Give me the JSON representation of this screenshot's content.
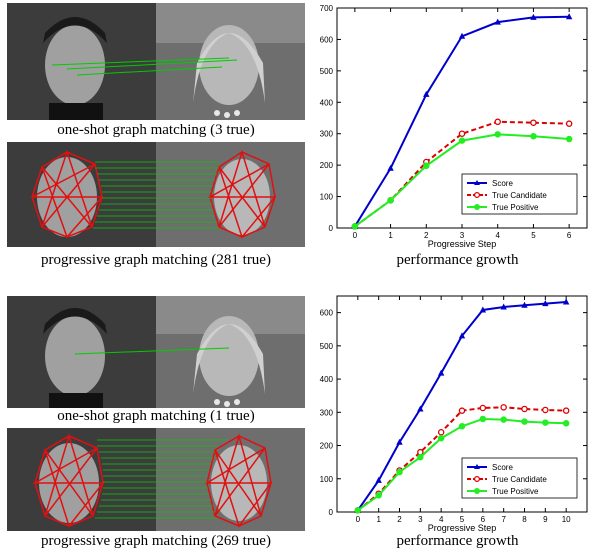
{
  "figures": [
    {
      "image_captions": [
        "one-shot graph matching (3 true)",
        "progressive graph matching (281 true)"
      ],
      "chart_caption": "performance growth"
    },
    {
      "image_captions": [
        "one-shot graph matching (1 true)",
        "progressive graph matching (269 true)"
      ],
      "chart_caption": "performance growth"
    }
  ],
  "colors": {
    "score": "#0000cc",
    "candidate": "#dd0000",
    "positive": "#22ee22",
    "graph": "#e01010",
    "match": "#00cc00"
  },
  "chart_data": [
    {
      "type": "line",
      "xlabel": "Progressive Step",
      "ylabel": "",
      "x": [
        0,
        1,
        2,
        3,
        4,
        5,
        6
      ],
      "xlim": [
        -0.5,
        6.5
      ],
      "ylim": [
        0,
        700
      ],
      "yticks": [
        0,
        100,
        200,
        300,
        400,
        500,
        600,
        700
      ],
      "legend": "bottom-right",
      "series": [
        {
          "name": "Score",
          "values": [
            5,
            190,
            425,
            610,
            655,
            670,
            672
          ]
        },
        {
          "name": "True Candidate",
          "values": [
            5,
            88,
            210,
            300,
            338,
            335,
            332
          ]
        },
        {
          "name": "True Positive",
          "values": [
            5,
            88,
            198,
            278,
            298,
            292,
            283
          ]
        }
      ]
    },
    {
      "type": "line",
      "xlabel": "Progressive Step",
      "ylabel": "",
      "x": [
        0,
        1,
        2,
        3,
        4,
        5,
        6,
        7,
        8,
        9,
        10
      ],
      "xlim": [
        -1,
        11
      ],
      "ylim": [
        0,
        650
      ],
      "yticks": [
        0,
        100,
        200,
        300,
        400,
        500,
        600
      ],
      "legend": "bottom-right",
      "series": [
        {
          "name": "Score",
          "values": [
            5,
            95,
            210,
            310,
            418,
            530,
            608,
            617,
            622,
            627,
            632
          ]
        },
        {
          "name": "True Candidate",
          "values": [
            5,
            55,
            125,
            180,
            240,
            305,
            313,
            315,
            310,
            307,
            305
          ]
        },
        {
          "name": "True Positive",
          "values": [
            5,
            50,
            120,
            165,
            222,
            258,
            280,
            278,
            272,
            269,
            267
          ]
        }
      ]
    }
  ]
}
